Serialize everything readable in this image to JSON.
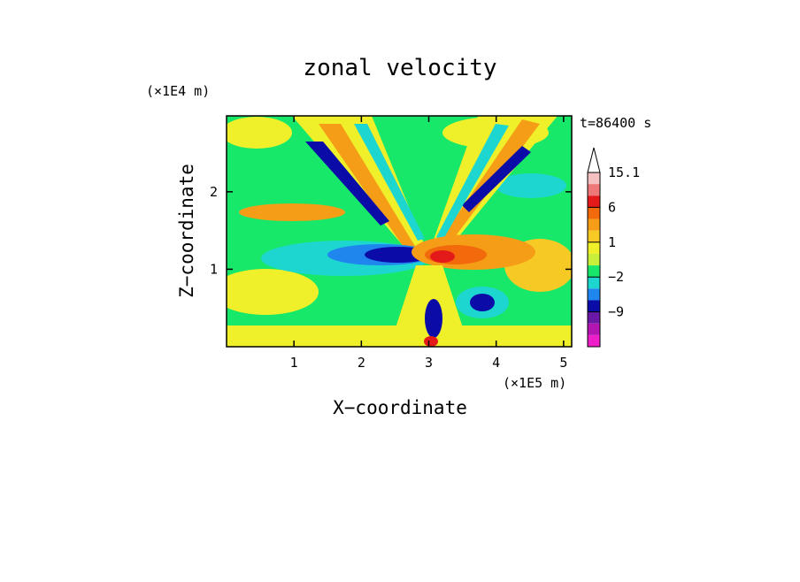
{
  "chart_data": {
    "type": "heatmap",
    "title": "zonal velocity",
    "xlabel": "X−coordinate",
    "ylabel": "Z−coordinate",
    "x_unit": "(×1E5 m)",
    "y_unit": "(×1E4 m)",
    "time_label": "t=86400 s",
    "xlim": [
      0,
      5.12
    ],
    "ylim": [
      0,
      2.98
    ],
    "x_ticks": [
      {
        "value": 1,
        "label": "1"
      },
      {
        "value": 2,
        "label": "2"
      },
      {
        "value": 3,
        "label": "3"
      },
      {
        "value": 4,
        "label": "4"
      },
      {
        "value": 5,
        "label": "5"
      }
    ],
    "y_ticks": [
      {
        "value": 1,
        "label": "1"
      },
      {
        "value": 2,
        "label": "2"
      }
    ],
    "colorbar": {
      "levels": [
        15.1,
        12,
        9,
        6,
        4,
        2,
        1,
        0,
        -1,
        -2,
        -3,
        -6,
        -9,
        -12,
        -15
      ],
      "colors": [
        "#f4c0c0",
        "#ee7777",
        "#e41a1a",
        "#f26a0c",
        "#f59d17",
        "#f7c925",
        "#f0f02a",
        "#c8f03a",
        "#18e86a",
        "#1ed6d0",
        "#1f86ee",
        "#0b0ba8",
        "#6c18a6",
        "#b215b2",
        "#ee1ec8"
      ],
      "labels": [
        {
          "value": 15.1,
          "label": "15.1"
        },
        {
          "value": 6,
          "label": "6"
        },
        {
          "value": 1,
          "label": "1"
        },
        {
          "value": -2,
          "label": "−2"
        },
        {
          "value": -9,
          "label": "−9"
        }
      ],
      "overflow_color": "#ffffff"
    },
    "features": [
      {
        "x": 3.0,
        "z": 1.2,
        "u": 12.0,
        "desc": "positive core east of center"
      },
      {
        "x": 2.6,
        "z": 1.2,
        "u": -9.0,
        "desc": "negative core west of center"
      },
      {
        "x": 3.6,
        "z": 0.6,
        "u": -8.0,
        "desc": "negative blob lower right"
      },
      {
        "x": 1.5,
        "z": 2.5,
        "u": -6.0,
        "desc": "negative band upper left"
      },
      {
        "x": 4.4,
        "z": 2.4,
        "u": -5.0,
        "desc": "negative band upper right"
      }
    ]
  }
}
